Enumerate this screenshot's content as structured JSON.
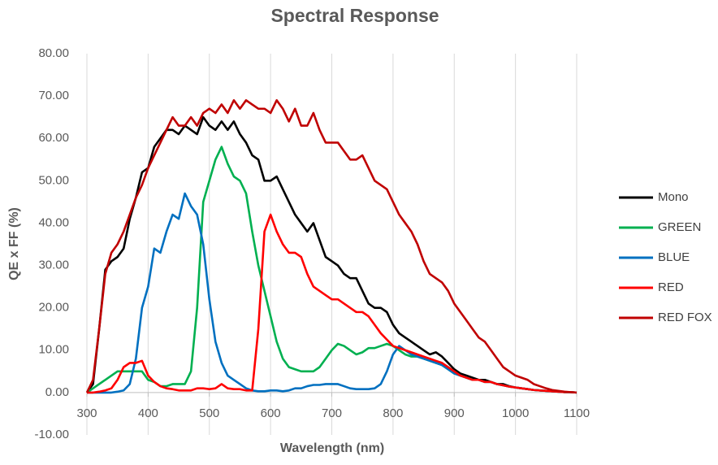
{
  "chart_data": {
    "type": "line",
    "title": "Spectral Response",
    "x_label": "Wavelength (nm)",
    "y_label": "QE x FF (%)",
    "x": [
      300,
      310,
      320,
      330,
      340,
      350,
      360,
      370,
      380,
      390,
      400,
      410,
      420,
      430,
      440,
      450,
      460,
      470,
      480,
      490,
      500,
      510,
      520,
      530,
      540,
      550,
      560,
      570,
      580,
      590,
      600,
      610,
      620,
      630,
      640,
      650,
      660,
      670,
      680,
      690,
      700,
      710,
      720,
      730,
      740,
      750,
      760,
      770,
      780,
      790,
      800,
      810,
      820,
      830,
      840,
      850,
      860,
      870,
      880,
      890,
      900,
      910,
      920,
      930,
      940,
      950,
      960,
      970,
      980,
      990,
      1000,
      1010,
      1020,
      1030,
      1040,
      1050,
      1060,
      1070,
      1080,
      1090,
      1100
    ],
    "series": [
      {
        "name": "Mono",
        "color": "#000000",
        "values": [
          0,
          2,
          15,
          29,
          31,
          32,
          34,
          41,
          46,
          52,
          53,
          58,
          60,
          62,
          62,
          61,
          63,
          62,
          61,
          65,
          63,
          62,
          64,
          62,
          64,
          61,
          59,
          56,
          55,
          50,
          50,
          51,
          48,
          45,
          42,
          40,
          38,
          40,
          36,
          32,
          31,
          30,
          28,
          27,
          27,
          24,
          21,
          20,
          20,
          19,
          16,
          14,
          13,
          12,
          11,
          10,
          9,
          9.5,
          8.5,
          7,
          5.5,
          4.5,
          4,
          3.5,
          3,
          3,
          2.5,
          2,
          2,
          1.5,
          1.2,
          1,
          0.8,
          0.6,
          0.5,
          0.4,
          0.3,
          0.2,
          0.1,
          0.1,
          0
        ]
      },
      {
        "name": "GREEN",
        "color": "#00b050",
        "values": [
          0,
          1,
          2,
          3,
          4,
          5,
          5,
          5,
          5,
          5,
          3,
          2.5,
          1.5,
          1.5,
          2,
          2,
          2,
          5,
          20,
          45,
          50,
          55,
          58,
          54,
          51,
          50,
          47,
          38,
          30,
          24,
          18,
          12,
          8,
          6,
          5.5,
          5,
          5,
          5,
          6,
          8,
          10,
          11.5,
          11,
          10,
          9,
          9.5,
          10.5,
          10.5,
          11,
          11.5,
          11,
          10,
          9,
          8.5,
          8.5,
          8,
          7.5,
          7,
          6.5,
          5.5,
          4.5,
          4,
          3.5,
          3,
          3,
          2.5,
          2.5,
          2,
          1.7,
          1.4,
          1.2,
          1,
          0.8,
          0.6,
          0.5,
          0.4,
          0.3,
          0.2,
          0.1,
          0.1,
          0
        ]
      },
      {
        "name": "BLUE",
        "color": "#0070c0",
        "values": [
          0,
          0,
          0,
          0,
          0,
          0.2,
          0.5,
          2,
          8,
          20,
          25,
          34,
          33,
          38,
          42,
          41,
          47,
          44,
          42,
          35,
          22,
          12,
          7,
          4,
          3,
          2,
          1,
          0.5,
          0.3,
          0.3,
          0.5,
          0.5,
          0.3,
          0.5,
          1,
          1,
          1.5,
          1.8,
          1.8,
          2,
          2,
          2,
          1.5,
          1,
          0.8,
          0.8,
          0.8,
          1,
          2,
          5,
          9,
          11,
          10,
          9,
          8.5,
          8,
          7.5,
          7,
          6.5,
          5.5,
          4.5,
          4,
          3.5,
          3,
          3,
          2.5,
          2.5,
          2,
          1.7,
          1.4,
          1.2,
          1,
          0.8,
          0.6,
          0.5,
          0.4,
          0.3,
          0.2,
          0.1,
          0.1,
          0
        ]
      },
      {
        "name": "RED",
        "color": "#ff0000",
        "values": [
          0,
          0,
          0.2,
          0.5,
          1,
          3,
          6,
          7,
          7,
          7.5,
          4,
          2.5,
          1.5,
          1,
          0.8,
          0.5,
          0.5,
          0.5,
          1,
          1,
          0.8,
          1,
          2,
          1,
          0.8,
          0.8,
          0.5,
          0.5,
          15,
          38,
          42,
          38,
          35,
          33,
          33,
          32,
          28,
          25,
          24,
          23,
          22,
          22,
          21,
          20,
          19,
          19,
          18,
          16,
          14,
          12.5,
          11,
          10.5,
          10,
          9.5,
          9,
          8.5,
          8,
          7.5,
          7,
          6,
          5,
          4,
          3.5,
          3,
          3,
          2.5,
          2.5,
          2,
          1.7,
          1.4,
          1.2,
          1,
          0.8,
          0.6,
          0.5,
          0.4,
          0.3,
          0.2,
          0.1,
          0.1,
          0
        ]
      },
      {
        "name": "RED FOX",
        "color": "#c00000",
        "values": [
          0,
          3,
          15,
          28,
          33,
          35,
          38,
          42,
          46,
          49,
          53,
          56,
          59,
          62,
          65,
          63,
          63,
          65,
          63,
          66,
          67,
          66,
          68,
          66,
          69,
          67,
          69,
          68,
          67,
          67,
          66,
          69,
          67,
          64,
          67,
          63,
          63,
          66,
          62,
          59,
          59,
          59,
          57,
          55,
          55,
          56,
          53,
          50,
          49,
          48,
          45,
          42,
          40,
          38,
          35,
          31,
          28,
          27,
          26,
          24,
          21,
          19,
          17,
          15,
          13,
          12,
          10,
          8,
          6,
          5,
          4,
          3.5,
          3,
          2,
          1.5,
          1,
          0.6,
          0.4,
          0.2,
          0.1,
          0
        ]
      }
    ],
    "xlim": [
      300,
      1100
    ],
    "xticks": [
      300,
      400,
      500,
      600,
      700,
      800,
      900,
      1000,
      1100
    ],
    "ylim": [
      -10,
      80
    ],
    "yticks": [
      {
        "value": -10,
        "label": "-10.00"
      },
      {
        "value": 0,
        "label": "0.00"
      },
      {
        "value": 10,
        "label": "10.00"
      },
      {
        "value": 20,
        "label": "20.00"
      },
      {
        "value": 30,
        "label": "30.00"
      },
      {
        "value": 40,
        "label": "40.00"
      },
      {
        "value": 50,
        "label": "50.00"
      },
      {
        "value": 60,
        "label": "60.00"
      },
      {
        "value": 70,
        "label": "70.00"
      },
      {
        "value": 80,
        "label": "80.00"
      }
    ],
    "grid": "x",
    "legend": "right"
  }
}
